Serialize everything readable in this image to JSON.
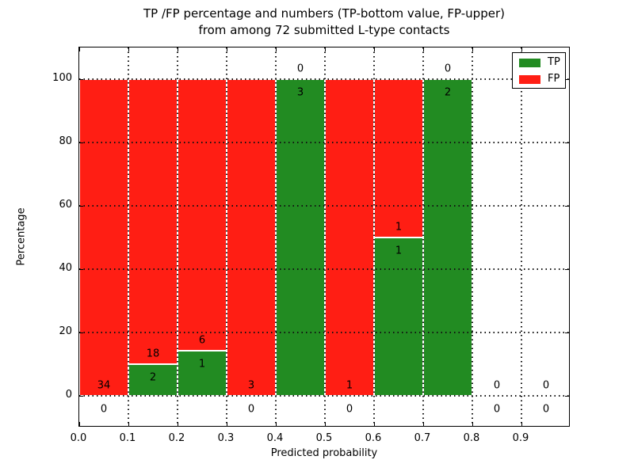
{
  "title": {
    "line1": "TP /FP percentage and numbers (TP-bottom value, FP-upper)",
    "line2": "from among 72 submitted L-type contacts"
  },
  "axes": {
    "xlabel": "Predicted probability",
    "ylabel": "Percentage",
    "ytick_labels": [
      "0",
      "20",
      "40",
      "60",
      "80",
      "100"
    ],
    "ytick_values": [
      0,
      20,
      40,
      60,
      80,
      100
    ],
    "xtick_labels": [
      "0.0",
      "0.1",
      "0.2",
      "0.3",
      "0.4",
      "0.5",
      "0.6",
      "0.7",
      "0.8",
      "0.9"
    ],
    "xtick_values": [
      0.0,
      0.1,
      0.2,
      0.3,
      0.4,
      0.5,
      0.6,
      0.7,
      0.8,
      0.9
    ],
    "ylim": [
      -10,
      110
    ],
    "xlim": [
      0,
      1
    ],
    "grid": "dotted"
  },
  "legend": {
    "position": "upper-right",
    "entries": [
      {
        "label": "TP",
        "color": "#228B22"
      },
      {
        "label": "FP",
        "color": "#FF1E14"
      }
    ]
  },
  "colors": {
    "tp_green": "#228B22",
    "fp_red": "#FF1E14",
    "text": "#000000",
    "background": "#FFFFFF"
  },
  "chart_data": {
    "type": "bar",
    "stacked": true,
    "unit": "percent",
    "bin_width": 0.1,
    "total_contacts": 72,
    "categories": [
      "0.0-0.1",
      "0.1-0.2",
      "0.2-0.3",
      "0.3-0.4",
      "0.4-0.5",
      "0.5-0.6",
      "0.6-0.7",
      "0.7-0.8",
      "0.8-0.9",
      "0.9-1.0"
    ],
    "bin_starts": [
      0.0,
      0.1,
      0.2,
      0.3,
      0.4,
      0.5,
      0.6,
      0.7,
      0.8,
      0.9
    ],
    "series": [
      {
        "name": "TP",
        "counts": [
          0,
          2,
          1,
          0,
          3,
          0,
          1,
          2,
          0,
          0
        ]
      },
      {
        "name": "FP",
        "counts": [
          34,
          18,
          6,
          3,
          0,
          1,
          1,
          0,
          0,
          0
        ]
      }
    ],
    "tp_percent": [
      0,
      10,
      14.29,
      0,
      100,
      0,
      50,
      100,
      0,
      0
    ],
    "fp_percent": [
      100,
      90,
      85.71,
      100,
      0,
      100,
      50,
      0,
      0,
      0
    ],
    "title": "TP /FP percentage and numbers (TP-bottom value, FP-upper) from among 72 submitted L-type contacts",
    "xlabel": "Predicted probability",
    "ylabel": "Percentage",
    "ylim": [
      -10,
      110
    ],
    "xlim": [
      0,
      1
    ],
    "legend_entries": [
      "TP",
      "FP"
    ]
  }
}
